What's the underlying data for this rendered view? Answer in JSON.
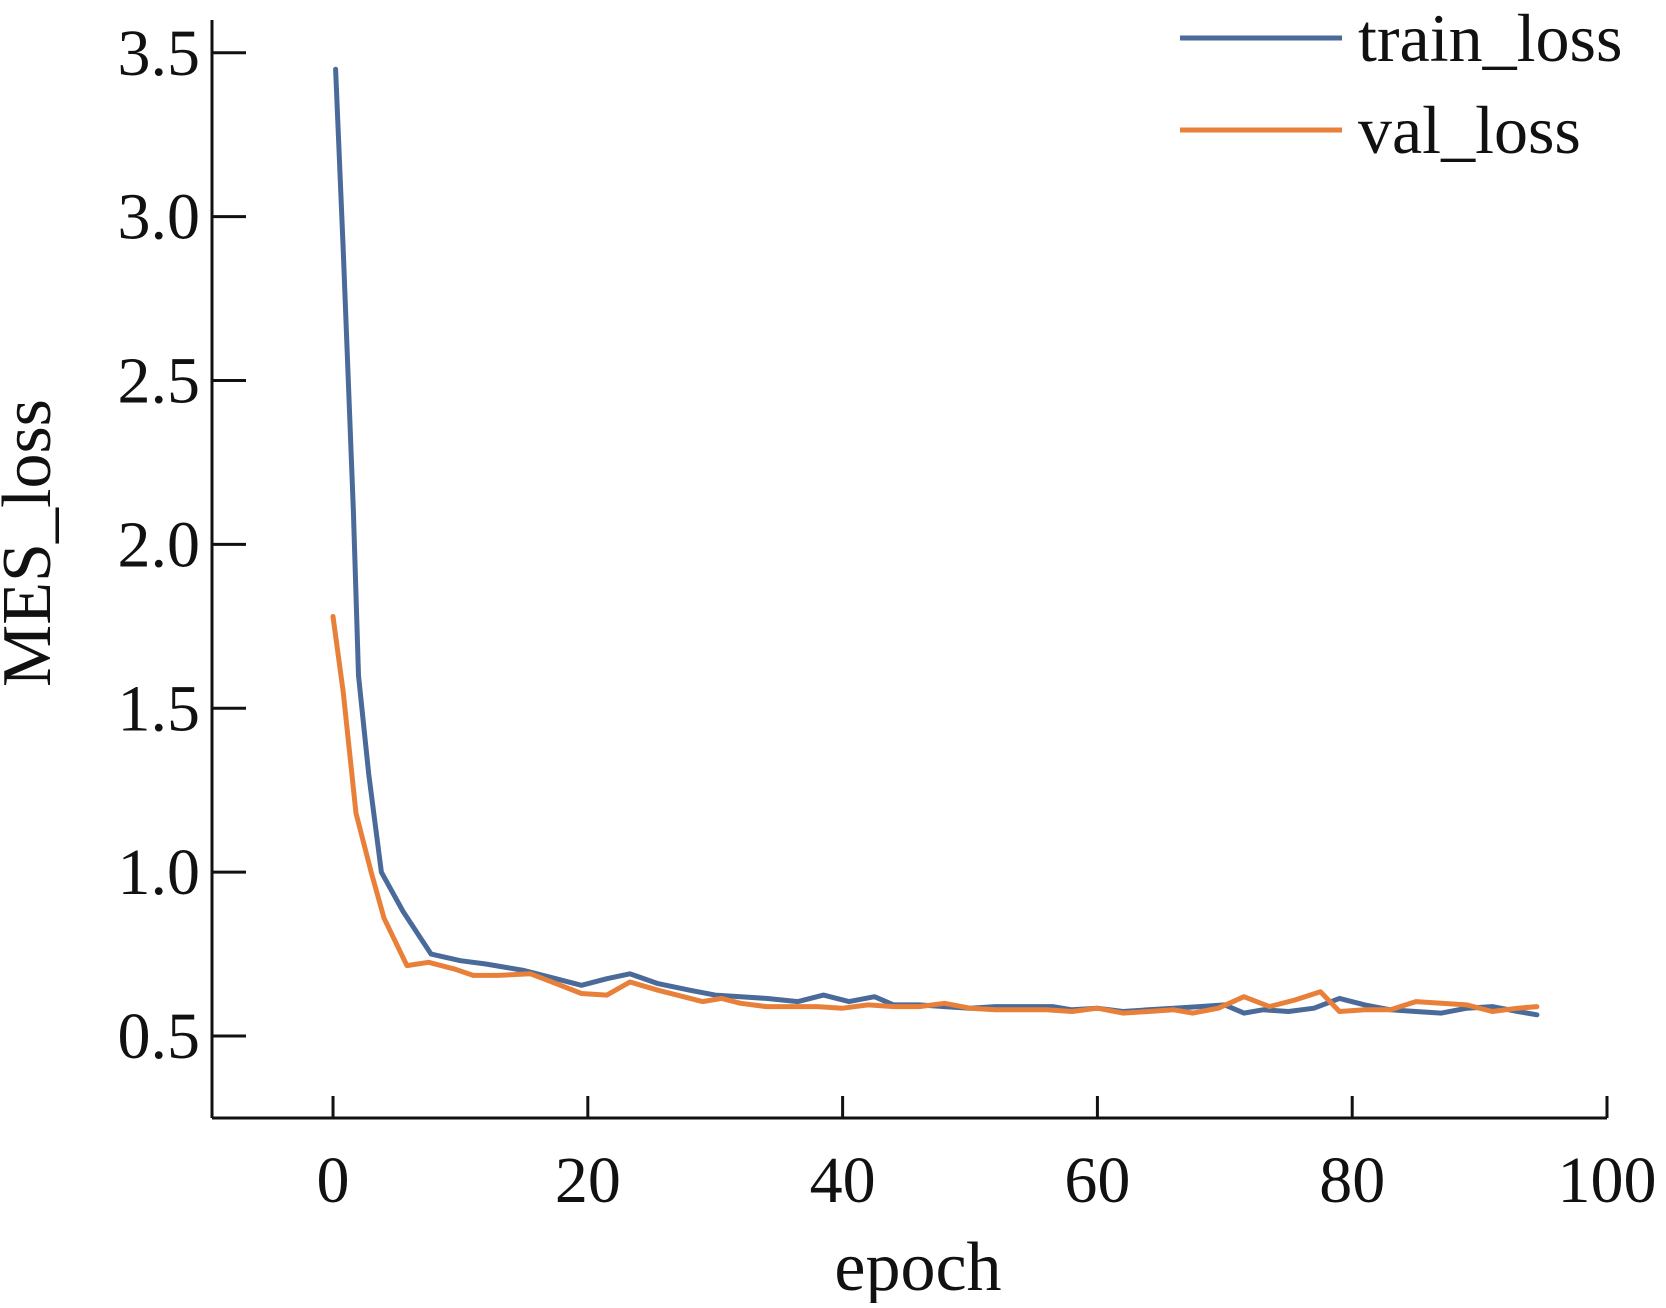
{
  "chart_data": {
    "type": "line",
    "title": "",
    "xlabel": "epoch",
    "ylabel": "MES_loss",
    "xlim": [
      -9.5,
      100
    ],
    "ylim": [
      0.25,
      3.6
    ],
    "xticks": [
      0,
      20,
      40,
      60,
      80,
      100
    ],
    "xtick_labels": [
      "0",
      "20",
      "40",
      "60",
      "80",
      "100"
    ],
    "yticks": [
      0.5,
      1.0,
      1.5,
      2.0,
      2.5,
      3.0,
      3.5
    ],
    "ytick_labels": [
      "0.5",
      "1.0",
      "1.5",
      "2.0",
      "2.5",
      "3.0",
      "3.5"
    ],
    "grid": false,
    "legend_position": "top-right",
    "series": [
      {
        "name": "train_loss",
        "color": "#4a6a9a",
        "points": [
          [
            0.2,
            3.45
          ],
          [
            0.8,
            2.9
          ],
          [
            1.6,
            2.1
          ],
          [
            2.0,
            1.6
          ],
          [
            2.8,
            1.3
          ],
          [
            3.8,
            1.0
          ],
          [
            5.5,
            0.88
          ],
          [
            7.7,
            0.75
          ],
          [
            10,
            0.73
          ],
          [
            12,
            0.72
          ],
          [
            15,
            0.7
          ],
          [
            17,
            0.68
          ],
          [
            19.5,
            0.655
          ],
          [
            21.5,
            0.675
          ],
          [
            23.3,
            0.69
          ],
          [
            25.5,
            0.66
          ],
          [
            28,
            0.64
          ],
          [
            30,
            0.625
          ],
          [
            32,
            0.62
          ],
          [
            34,
            0.615
          ],
          [
            36.5,
            0.605
          ],
          [
            38.5,
            0.625
          ],
          [
            40.5,
            0.605
          ],
          [
            42.5,
            0.62
          ],
          [
            44,
            0.595
          ],
          [
            46,
            0.595
          ],
          [
            48,
            0.59
          ],
          [
            50,
            0.585
          ],
          [
            52,
            0.59
          ],
          [
            54,
            0.59
          ],
          [
            56.5,
            0.59
          ],
          [
            58,
            0.58
          ],
          [
            60,
            0.585
          ],
          [
            62,
            0.575
          ],
          [
            64,
            0.58
          ],
          [
            66,
            0.585
          ],
          [
            68,
            0.59
          ],
          [
            70,
            0.595
          ],
          [
            71.5,
            0.57
          ],
          [
            73,
            0.58
          ],
          [
            75,
            0.575
          ],
          [
            77,
            0.585
          ],
          [
            79,
            0.615
          ],
          [
            81,
            0.595
          ],
          [
            83,
            0.58
          ],
          [
            85,
            0.575
          ],
          [
            87,
            0.57
          ],
          [
            89,
            0.585
          ],
          [
            91,
            0.59
          ],
          [
            93,
            0.575
          ],
          [
            94.5,
            0.565
          ]
        ]
      },
      {
        "name": "val_loss",
        "color": "#e8803a",
        "points": [
          [
            0.0,
            1.78
          ],
          [
            0.8,
            1.55
          ],
          [
            1.8,
            1.18
          ],
          [
            3.0,
            1.0
          ],
          [
            4.0,
            0.86
          ],
          [
            5.8,
            0.715
          ],
          [
            7.5,
            0.725
          ],
          [
            9.5,
            0.705
          ],
          [
            11,
            0.685
          ],
          [
            13,
            0.685
          ],
          [
            15.5,
            0.69
          ],
          [
            17.5,
            0.66
          ],
          [
            19.5,
            0.63
          ],
          [
            21.5,
            0.625
          ],
          [
            23.3,
            0.665
          ],
          [
            25.5,
            0.64
          ],
          [
            27.5,
            0.62
          ],
          [
            29,
            0.605
          ],
          [
            30.5,
            0.615
          ],
          [
            32,
            0.6
          ],
          [
            34,
            0.59
          ],
          [
            36,
            0.59
          ],
          [
            38,
            0.59
          ],
          [
            40,
            0.585
          ],
          [
            42,
            0.595
          ],
          [
            44,
            0.59
          ],
          [
            46,
            0.59
          ],
          [
            48,
            0.6
          ],
          [
            50,
            0.585
          ],
          [
            52,
            0.58
          ],
          [
            54,
            0.58
          ],
          [
            56,
            0.58
          ],
          [
            58,
            0.575
          ],
          [
            60,
            0.585
          ],
          [
            62,
            0.57
          ],
          [
            64,
            0.575
          ],
          [
            66,
            0.58
          ],
          [
            67.5,
            0.57
          ],
          [
            69.5,
            0.585
          ],
          [
            71.5,
            0.62
          ],
          [
            73.5,
            0.59
          ],
          [
            75.5,
            0.61
          ],
          [
            77.5,
            0.635
          ],
          [
            79,
            0.575
          ],
          [
            81,
            0.58
          ],
          [
            83,
            0.58
          ],
          [
            85,
            0.605
          ],
          [
            87,
            0.6
          ],
          [
            89,
            0.595
          ],
          [
            91,
            0.575
          ],
          [
            93,
            0.585
          ],
          [
            94.5,
            0.59
          ]
        ]
      }
    ]
  }
}
